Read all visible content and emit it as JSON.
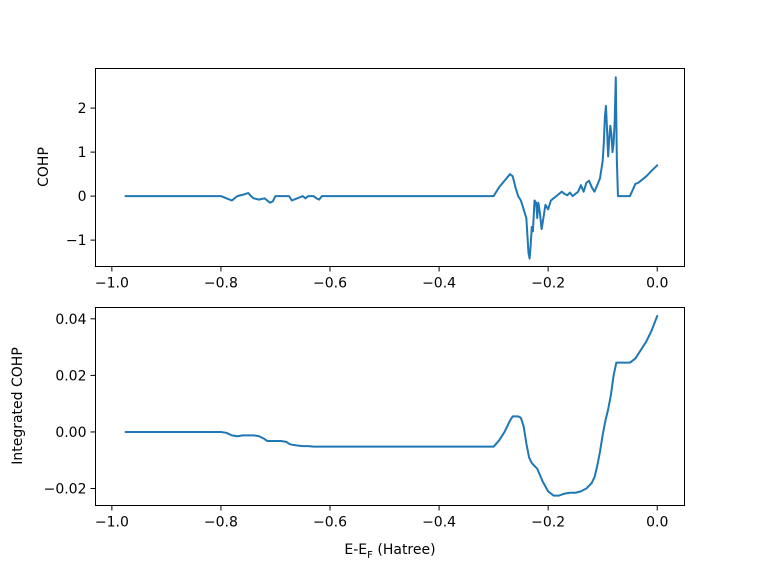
{
  "chart_data": [
    {
      "type": "line",
      "title": "",
      "xlabel": "",
      "ylabel": "COHP",
      "xlim": [
        -1.03,
        0.05
      ],
      "ylim": [
        -1.6,
        2.9
      ],
      "xticks": [
        -1.0,
        -0.8,
        -0.6,
        -0.4,
        -0.2,
        0.0
      ],
      "xtick_labels": [
        "−1.0",
        "−0.8",
        "−0.6",
        "−0.4",
        "−0.2",
        "0.0"
      ],
      "yticks": [
        -1,
        0,
        1,
        2
      ],
      "ytick_labels": [
        "−1",
        "0",
        "1",
        "2"
      ],
      "grid": false,
      "color": "#1f77b4",
      "series": [
        {
          "x": [
            -0.975,
            -0.8,
            -0.79,
            -0.78,
            -0.77,
            -0.76,
            -0.75,
            -0.745,
            -0.74,
            -0.73,
            -0.72,
            -0.715,
            -0.71,
            -0.705,
            -0.7,
            -0.69,
            -0.68,
            -0.675,
            -0.67,
            -0.66,
            -0.65,
            -0.645,
            -0.64,
            -0.63,
            -0.625,
            -0.62,
            -0.615,
            -0.3,
            -0.29,
            -0.28,
            -0.27,
            -0.265,
            -0.26,
            -0.255,
            -0.25,
            -0.245,
            -0.24,
            -0.238,
            -0.236,
            -0.234,
            -0.232,
            -0.23,
            -0.228,
            -0.225,
            -0.222,
            -0.22,
            -0.218,
            -0.215,
            -0.212,
            -0.21,
            -0.205,
            -0.2,
            -0.195,
            -0.19,
            -0.185,
            -0.18,
            -0.175,
            -0.17,
            -0.165,
            -0.16,
            -0.155,
            -0.15,
            -0.145,
            -0.14,
            -0.135,
            -0.13,
            -0.125,
            -0.12,
            -0.115,
            -0.11,
            -0.105,
            -0.1,
            -0.098,
            -0.096,
            -0.094,
            -0.092,
            -0.09,
            -0.088,
            -0.086,
            -0.084,
            -0.082,
            -0.08,
            -0.078,
            -0.076,
            -0.074,
            -0.072,
            -0.07,
            -0.065,
            -0.06,
            -0.05,
            -0.04,
            -0.035,
            -0.03,
            -0.02,
            -0.01,
            0.0
          ],
          "y": [
            0.0,
            0.0,
            -0.05,
            -0.1,
            0.0,
            0.03,
            0.07,
            0.0,
            -0.05,
            -0.08,
            -0.05,
            -0.1,
            -0.15,
            -0.12,
            0.0,
            0.0,
            0.0,
            0.0,
            -0.1,
            -0.05,
            0.0,
            -0.05,
            0.0,
            0.0,
            -0.05,
            -0.08,
            0.0,
            0.0,
            0.2,
            0.35,
            0.5,
            0.45,
            0.2,
            0.0,
            -0.1,
            -0.3,
            -0.5,
            -0.9,
            -1.3,
            -1.42,
            -1.1,
            -0.7,
            -0.8,
            -0.1,
            -0.15,
            -0.5,
            -0.15,
            -0.4,
            -0.75,
            -0.6,
            -0.2,
            -0.3,
            -0.1,
            -0.05,
            0.0,
            0.05,
            0.1,
            0.05,
            0.02,
            0.08,
            0.0,
            0.05,
            0.1,
            0.25,
            0.1,
            0.3,
            0.35,
            0.2,
            0.1,
            0.25,
            0.4,
            0.8,
            1.2,
            1.8,
            2.05,
            1.5,
            0.9,
            1.3,
            1.6,
            1.4,
            1.0,
            1.2,
            1.7,
            2.7,
            0.8,
            0.0,
            0.0,
            0.0,
            0.0,
            0.0,
            0.28,
            0.3,
            0.35,
            0.45,
            0.58,
            0.7
          ]
        }
      ]
    },
    {
      "type": "line",
      "title": "",
      "xlabel": "E-E",
      "xlabel_sub": "F",
      "xlabel_tail": " (Hatree)",
      "ylabel": "Integrated COHP",
      "xlim": [
        -1.03,
        0.05
      ],
      "ylim": [
        -0.026,
        0.044
      ],
      "xticks": [
        -1.0,
        -0.8,
        -0.6,
        -0.4,
        -0.2,
        0.0
      ],
      "xtick_labels": [
        "−1.0",
        "−0.8",
        "−0.6",
        "−0.4",
        "−0.2",
        "0.0"
      ],
      "yticks": [
        -0.02,
        0.0,
        0.02,
        0.04
      ],
      "ytick_labels": [
        "−0.02",
        "0.00",
        "0.02",
        "0.04"
      ],
      "grid": false,
      "color": "#1f77b4",
      "series": [
        {
          "x": [
            -0.975,
            -0.8,
            -0.79,
            -0.78,
            -0.77,
            -0.76,
            -0.75,
            -0.74,
            -0.73,
            -0.72,
            -0.715,
            -0.71,
            -0.7,
            -0.69,
            -0.68,
            -0.675,
            -0.67,
            -0.66,
            -0.65,
            -0.64,
            -0.63,
            -0.62,
            -0.3,
            -0.29,
            -0.28,
            -0.27,
            -0.265,
            -0.26,
            -0.255,
            -0.25,
            -0.245,
            -0.24,
            -0.235,
            -0.23,
            -0.225,
            -0.22,
            -0.21,
            -0.2,
            -0.19,
            -0.18,
            -0.17,
            -0.16,
            -0.15,
            -0.14,
            -0.13,
            -0.12,
            -0.115,
            -0.11,
            -0.105,
            -0.1,
            -0.095,
            -0.09,
            -0.085,
            -0.08,
            -0.075,
            -0.06,
            -0.05,
            -0.04,
            -0.03,
            -0.02,
            -0.01,
            0.0
          ],
          "y": [
            0.0,
            0.0,
            -0.0003,
            -0.0012,
            -0.0015,
            -0.0012,
            -0.0012,
            -0.0012,
            -0.0015,
            -0.0025,
            -0.0032,
            -0.0032,
            -0.0032,
            -0.0032,
            -0.0035,
            -0.0042,
            -0.0045,
            -0.0048,
            -0.005,
            -0.005,
            -0.0052,
            -0.0052,
            -0.0052,
            -0.003,
            0.0,
            0.004,
            0.0055,
            0.0055,
            0.0055,
            0.005,
            0.002,
            -0.004,
            -0.009,
            -0.011,
            -0.012,
            -0.013,
            -0.0175,
            -0.021,
            -0.0225,
            -0.0225,
            -0.0218,
            -0.0215,
            -0.0215,
            -0.021,
            -0.02,
            -0.018,
            -0.016,
            -0.012,
            -0.007,
            -0.001,
            0.004,
            0.008,
            0.013,
            0.02,
            0.0245,
            0.0245,
            0.0245,
            0.026,
            0.029,
            0.032,
            0.036,
            0.041
          ]
        }
      ]
    }
  ]
}
